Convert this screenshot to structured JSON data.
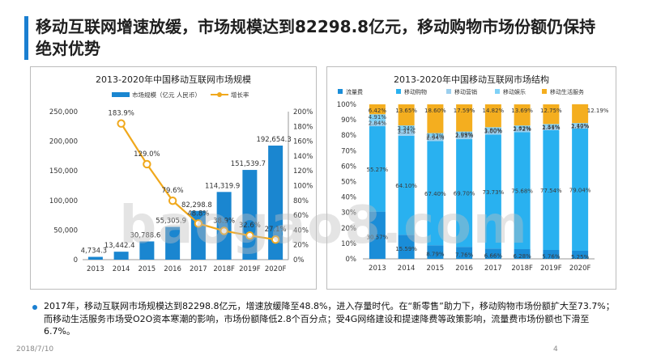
{
  "slide": {
    "title": "移动互联网增速放缓，市场规模达到82298.8亿元，移动购物市场份额仍保持绝对优势",
    "bullet": "2017年，移动互联网市场规模达到82298.8亿元，增速放缓降至48.8%，进入存量时代。在“新零售”助力下，移动购物市场份额扩大至73.7%；而移动生活服务市场受O2O资本寒潮的影响，市场份额降低2.8个百分点；受4G网络建设和提速降费等政策影响，流量费市场份额也下滑至6.7%。",
    "date": "2018/7/10",
    "page": "4",
    "watermark": "baogao8.com"
  },
  "colors": {
    "accent": "#1a7fd1",
    "bar": "#1a86d0",
    "line": "#f0a81c",
    "traffic": "#1a8dd8",
    "shopping": "#29b1f0",
    "marketing": "#9bcfee",
    "entertainment": "#7fd1f7",
    "life": "#f4ae1f"
  },
  "chart_data": [
    {
      "type": "bar",
      "title": "2013-2020年中国移动互联网市场规模",
      "categories": [
        "2013",
        "2014",
        "2015",
        "2016",
        "2017",
        "2018F",
        "2019F",
        "2020F"
      ],
      "series": [
        {
          "name": "市场规模（亿元 人民币）",
          "kind": "bar",
          "axis": "left",
          "values": [
            4734.3,
            13442.4,
            30788.6,
            55305.9,
            82298.8,
            114319.9,
            151539.7,
            192654.3
          ],
          "labels": [
            "4,734.3",
            "13,442.4",
            "30,788.6",
            "55,305.9",
            "82,298.8",
            "114,319.9",
            "151,539.7",
            "192,654.3"
          ]
        },
        {
          "name": "增长率",
          "kind": "line",
          "axis": "right",
          "values": [
            null,
            183.9,
            129.0,
            79.6,
            48.8,
            38.9,
            32.6,
            27.1
          ],
          "labels": [
            "",
            "183.9%",
            "129.0%",
            "79.6%",
            "48.8%",
            "38.9%",
            "32.6%",
            "27.1%"
          ]
        }
      ],
      "y_left": {
        "lim": [
          0,
          250000
        ],
        "ticks": [
          "0",
          "50,000",
          "100,000",
          "150,000",
          "200,000",
          "250,000"
        ]
      },
      "y_right": {
        "lim": [
          0,
          200
        ],
        "ticks": [
          "0%",
          "20%",
          "40%",
          "60%",
          "80%",
          "100%",
          "120%",
          "140%",
          "160%",
          "180%",
          "200%"
        ]
      }
    },
    {
      "type": "bar",
      "stacked": true,
      "title": "2013-2020年中国移动互联网市场结构",
      "categories": [
        "2013",
        "2014",
        "2015",
        "2016",
        "2017",
        "2018F",
        "2019F",
        "2020F"
      ],
      "series": [
        {
          "name": "流量费",
          "values": [
            30.57,
            15.59,
            8.79,
            7.76,
            6.66,
            6.28,
            5.76,
            5.25
          ],
          "labels": [
            "30.57%",
            "15.59%",
            "8.79%",
            "7.76%",
            "6.66%",
            "6.28%",
            "5.76%",
            "5.25%"
          ]
        },
        {
          "name": "移动购物",
          "values": [
            55.27,
            64.1,
            67.4,
            69.7,
            73.73,
            75.68,
            77.54,
            79.04
          ],
          "labels": [
            "55.27%",
            "64.10%",
            "67.40%",
            "69.70%",
            "73.73%",
            "75.68%",
            "77.54%",
            "79.04%"
          ]
        },
        {
          "name": "移动营销",
          "values": [
            2.84,
            3.31,
            2.94,
            2.95,
            3.0,
            2.72,
            2.41,
            2.19
          ],
          "labels": [
            "2.84%",
            "3.31%",
            "2.94%",
            "2.95%",
            "3.00%",
            "2.72%",
            "2.41%",
            "2.19%"
          ]
        },
        {
          "name": "移动娱乐",
          "values": [
            4.91,
            3.34,
            2.27,
            1.99,
            1.8,
            1.62,
            1.54,
            1.4
          ],
          "labels": [
            "4.91%",
            "3.34%",
            "2.27%",
            "1.99%",
            "1.80%",
            "1.62%",
            "1.54%",
            "1.40%"
          ]
        },
        {
          "name": "移动生活服务",
          "values": [
            6.42,
            13.65,
            18.6,
            17.59,
            14.82,
            13.69,
            12.75,
            12.19
          ],
          "labels": [
            "6.42%",
            "13.65%",
            "18.60%",
            "17.59%",
            "14.82%",
            "13.69%",
            "12.75%",
            "12.19%"
          ]
        }
      ],
      "y": {
        "lim": [
          0,
          100
        ],
        "ticks": [
          "0%",
          "10%",
          "20%",
          "30%",
          "40%",
          "50%",
          "60%",
          "70%",
          "80%",
          "90%",
          "100%"
        ]
      }
    }
  ]
}
